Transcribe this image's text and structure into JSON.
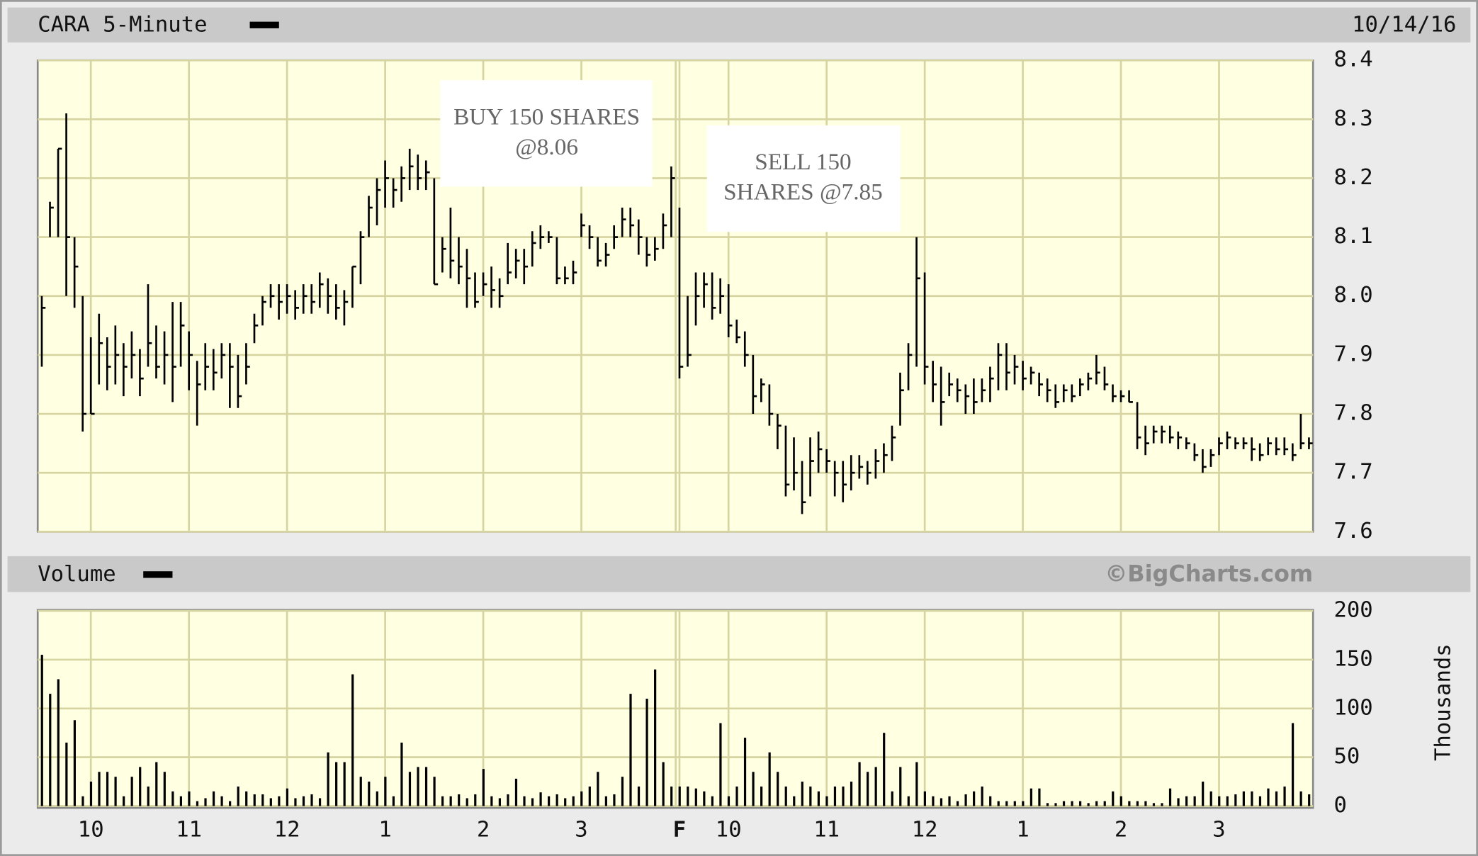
{
  "chart_data": [
    {
      "type": "hlc",
      "title": "CARA 5-Minute",
      "date": "10/14/16",
      "color": "#000000",
      "annotations": [
        [
          "BUY 150 SHARES",
          "@8.06"
        ],
        [
          "SELL 150",
          "SHARES @7.85"
        ]
      ],
      "xlim": [
        -0.5,
        155.5
      ],
      "ylim": [
        7.6,
        8.4
      ],
      "yticks": [
        7.6,
        7.7,
        7.8,
        7.9,
        {
          "value": 8,
          "label": "8.0"
        },
        8.1,
        8.2,
        8.3,
        8.4
      ],
      "grid": true,
      "high": [
        8.0,
        8.16,
        8.25,
        8.31,
        8.1,
        8.0,
        7.93,
        7.97,
        7.93,
        7.95,
        7.92,
        7.94,
        7.91,
        8.02,
        7.95,
        7.94,
        7.99,
        7.99,
        7.94,
        7.89,
        7.92,
        7.91,
        7.92,
        7.92,
        7.9,
        7.92,
        7.97,
        8.0,
        8.02,
        8.02,
        8.02,
        8.01,
        8.02,
        8.02,
        8.04,
        8.03,
        8.02,
        8.01,
        8.05,
        8.11,
        8.17,
        8.2,
        8.23,
        8.2,
        8.22,
        8.25,
        8.24,
        8.23,
        8.2,
        8.1,
        8.15,
        8.1,
        8.08,
        8.04,
        8.04,
        8.05,
        8.03,
        8.09,
        8.08,
        8.08,
        8.11,
        8.12,
        8.11,
        8.1,
        8.05,
        8.06,
        8.14,
        8.12,
        8.1,
        8.09,
        8.12,
        8.15,
        8.15,
        8.13,
        8.1,
        8.1,
        8.14,
        8.22,
        8.15,
        8.0,
        8.04,
        8.04,
        8.04,
        8.03,
        8.02,
        7.96,
        7.94,
        7.9,
        7.86,
        7.85,
        7.8,
        7.78,
        7.76,
        7.72,
        7.76,
        7.77,
        7.74,
        7.72,
        7.72,
        7.73,
        7.73,
        7.72,
        7.74,
        7.75,
        7.78,
        7.87,
        7.92,
        8.1,
        8.04,
        7.89,
        7.88,
        7.87,
        7.86,
        7.85,
        7.86,
        7.86,
        7.88,
        7.92,
        7.92,
        7.9,
        7.89,
        7.88,
        7.87,
        7.86,
        7.85,
        7.85,
        7.85,
        7.86,
        7.87,
        7.9,
        7.88,
        7.85,
        7.84,
        7.84,
        7.82,
        7.78,
        7.78,
        7.78,
        7.78,
        7.77,
        7.76,
        7.75,
        7.74,
        7.74,
        7.76,
        7.77,
        7.76,
        7.76,
        7.76,
        7.75,
        7.76,
        7.76,
        7.76,
        7.75,
        7.8,
        7.76
      ],
      "low": [
        7.88,
        8.1,
        8.1,
        8.0,
        7.98,
        7.77,
        7.8,
        7.85,
        7.84,
        7.85,
        7.83,
        7.86,
        7.83,
        7.88,
        7.86,
        7.85,
        7.82,
        7.88,
        7.84,
        7.78,
        7.84,
        7.84,
        7.86,
        7.81,
        7.81,
        7.85,
        7.92,
        7.95,
        7.98,
        7.96,
        7.97,
        7.96,
        7.97,
        7.97,
        7.98,
        7.97,
        7.96,
        7.95,
        7.98,
        8.02,
        8.1,
        8.12,
        8.15,
        8.15,
        8.16,
        8.18,
        8.18,
        8.18,
        8.02,
        8.04,
        8.03,
        8.02,
        7.98,
        7.98,
        8.0,
        7.98,
        7.98,
        8.02,
        8.03,
        8.02,
        8.05,
        8.08,
        8.09,
        8.02,
        8.02,
        8.02,
        8.1,
        8.08,
        8.05,
        8.05,
        8.08,
        8.1,
        8.1,
        8.07,
        8.05,
        8.06,
        8.08,
        8.1,
        7.86,
        7.88,
        7.95,
        7.98,
        7.96,
        7.97,
        7.93,
        7.92,
        7.88,
        7.8,
        7.82,
        7.78,
        7.74,
        7.66,
        7.67,
        7.63,
        7.66,
        7.7,
        7.7,
        7.66,
        7.65,
        7.67,
        7.69,
        7.68,
        7.69,
        7.7,
        7.72,
        7.78,
        7.84,
        7.88,
        7.85,
        7.82,
        7.78,
        7.83,
        7.82,
        7.8,
        7.8,
        7.82,
        7.82,
        7.84,
        7.84,
        7.85,
        7.84,
        7.85,
        7.83,
        7.82,
        7.81,
        7.82,
        7.82,
        7.83,
        7.84,
        7.85,
        7.84,
        7.82,
        7.82,
        7.82,
        7.74,
        7.73,
        7.75,
        7.75,
        7.75,
        7.74,
        7.74,
        7.72,
        7.7,
        7.71,
        7.73,
        7.74,
        7.74,
        7.74,
        7.72,
        7.72,
        7.73,
        7.73,
        7.73,
        7.72,
        7.74,
        7.74
      ],
      "close": [
        7.98,
        8.15,
        8.25,
        8.1,
        8.05,
        7.8,
        7.8,
        7.92,
        7.88,
        7.9,
        7.88,
        7.9,
        7.86,
        7.92,
        7.88,
        7.9,
        7.88,
        7.95,
        7.9,
        7.85,
        7.88,
        7.87,
        7.9,
        7.88,
        7.83,
        7.88,
        7.95,
        7.99,
        8.0,
        7.99,
        8.0,
        7.98,
        8.0,
        7.99,
        8.02,
        8.0,
        7.98,
        7.99,
        8.05,
        8.1,
        8.15,
        8.18,
        8.2,
        8.18,
        8.2,
        8.22,
        8.2,
        8.21,
        8.02,
        8.08,
        8.06,
        8.05,
        8.03,
        7.99,
        8.02,
        8.01,
        8.0,
        8.04,
        8.06,
        8.05,
        8.09,
        8.1,
        8.1,
        8.03,
        8.03,
        8.04,
        8.12,
        8.1,
        8.06,
        8.07,
        8.1,
        8.13,
        8.12,
        8.1,
        8.07,
        8.08,
        8.12,
        8.2,
        7.88,
        7.9,
        8.0,
        8.02,
        7.98,
        8.0,
        7.95,
        7.93,
        7.9,
        7.83,
        7.85,
        7.8,
        7.78,
        7.68,
        7.7,
        7.65,
        7.72,
        7.74,
        7.72,
        7.7,
        7.68,
        7.7,
        7.71,
        7.7,
        7.72,
        7.73,
        7.76,
        7.84,
        7.9,
        8.03,
        7.88,
        7.85,
        7.82,
        7.85,
        7.84,
        7.83,
        7.82,
        7.84,
        7.86,
        7.9,
        7.87,
        7.88,
        7.86,
        7.87,
        7.85,
        7.84,
        7.82,
        7.84,
        7.83,
        7.85,
        7.86,
        7.87,
        7.85,
        7.83,
        7.83,
        7.82,
        7.76,
        7.75,
        7.77,
        7.77,
        7.76,
        7.76,
        7.75,
        7.73,
        7.71,
        7.73,
        7.75,
        7.76,
        7.75,
        7.75,
        7.74,
        7.73,
        7.75,
        7.74,
        7.74,
        7.73,
        7.75,
        7.75
      ]
    },
    {
      "type": "bar",
      "title": "Volume",
      "watermark": "©BigCharts.com",
      "ylabel": "Thousands",
      "color": "#000000",
      "xlim": [
        -0.5,
        155.5
      ],
      "xticks": [
        {
          "value": 6,
          "label": "10"
        },
        {
          "value": 18,
          "label": "11"
        },
        {
          "value": 30,
          "label": "12"
        },
        {
          "value": 42,
          "label": "1"
        },
        {
          "value": 54,
          "label": "2"
        },
        {
          "value": 66,
          "label": "3"
        },
        {
          "value": 78,
          "label": "F"
        },
        {
          "value": 84,
          "label": "10"
        },
        {
          "value": 96,
          "label": "11"
        },
        {
          "value": 108,
          "label": "12"
        },
        {
          "value": 120,
          "label": "1"
        },
        {
          "value": 132,
          "label": "2"
        },
        {
          "value": 144,
          "label": "3"
        }
      ],
      "ylim": [
        0,
        200
      ],
      "yticks": [
        0,
        50,
        100,
        150,
        200
      ],
      "grid": true,
      "values": [
        155,
        115,
        130,
        65,
        88,
        10,
        25,
        35,
        35,
        30,
        10,
        30,
        40,
        20,
        45,
        35,
        15,
        10,
        15,
        5,
        8,
        15,
        10,
        5,
        20,
        15,
        12,
        12,
        8,
        10,
        18,
        8,
        10,
        12,
        8,
        55,
        45,
        45,
        135,
        30,
        25,
        15,
        30,
        10,
        65,
        35,
        40,
        40,
        30,
        10,
        10,
        12,
        8,
        12,
        38,
        10,
        8,
        12,
        28,
        10,
        8,
        14,
        10,
        12,
        8,
        10,
        15,
        20,
        35,
        10,
        12,
        30,
        115,
        20,
        110,
        140,
        45,
        20,
        20,
        20,
        18,
        15,
        10,
        85,
        10,
        20,
        70,
        35,
        20,
        55,
        35,
        20,
        10,
        25,
        20,
        15,
        10,
        20,
        20,
        25,
        45,
        35,
        40,
        75,
        15,
        40,
        10,
        45,
        15,
        10,
        8,
        10,
        5,
        12,
        15,
        20,
        10,
        5,
        5,
        5,
        5,
        18,
        18,
        3,
        3,
        5,
        5,
        5,
        3,
        5,
        5,
        15,
        10,
        5,
        5,
        5,
        3,
        3,
        18,
        8,
        10,
        10,
        25,
        15,
        10,
        10,
        12,
        15,
        15,
        10,
        18,
        15,
        20,
        85,
        15,
        12
      ]
    }
  ]
}
